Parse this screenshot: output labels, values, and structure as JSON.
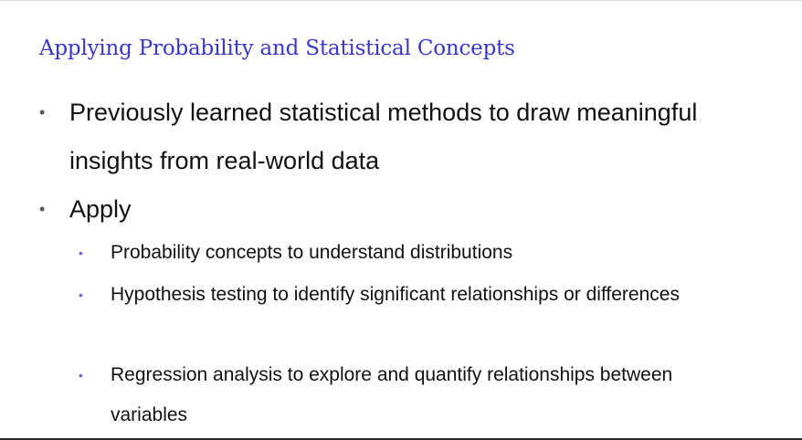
{
  "slide": {
    "title": "Applying Probability and Statistical Concepts",
    "bullets": [
      {
        "level": 1,
        "text": "Previously learned statistical methods to draw meaningful insights from real-world data"
      },
      {
        "level": 1,
        "text": "Apply"
      },
      {
        "level": 2,
        "text": "Probability concepts to understand distributions"
      },
      {
        "level": 2,
        "text": "Hypothesis testing to identify significant relationships or differences"
      },
      {
        "level": 2,
        "text": "Regression analysis to explore and quantify relationships between variables"
      }
    ],
    "bullet_glyph": "•",
    "colors": {
      "title": "#3a36c8",
      "body_text": "#111111",
      "level1_bullet": "#555555",
      "level2_bullet": "#6e6ad6",
      "background": "#ffffff"
    }
  }
}
